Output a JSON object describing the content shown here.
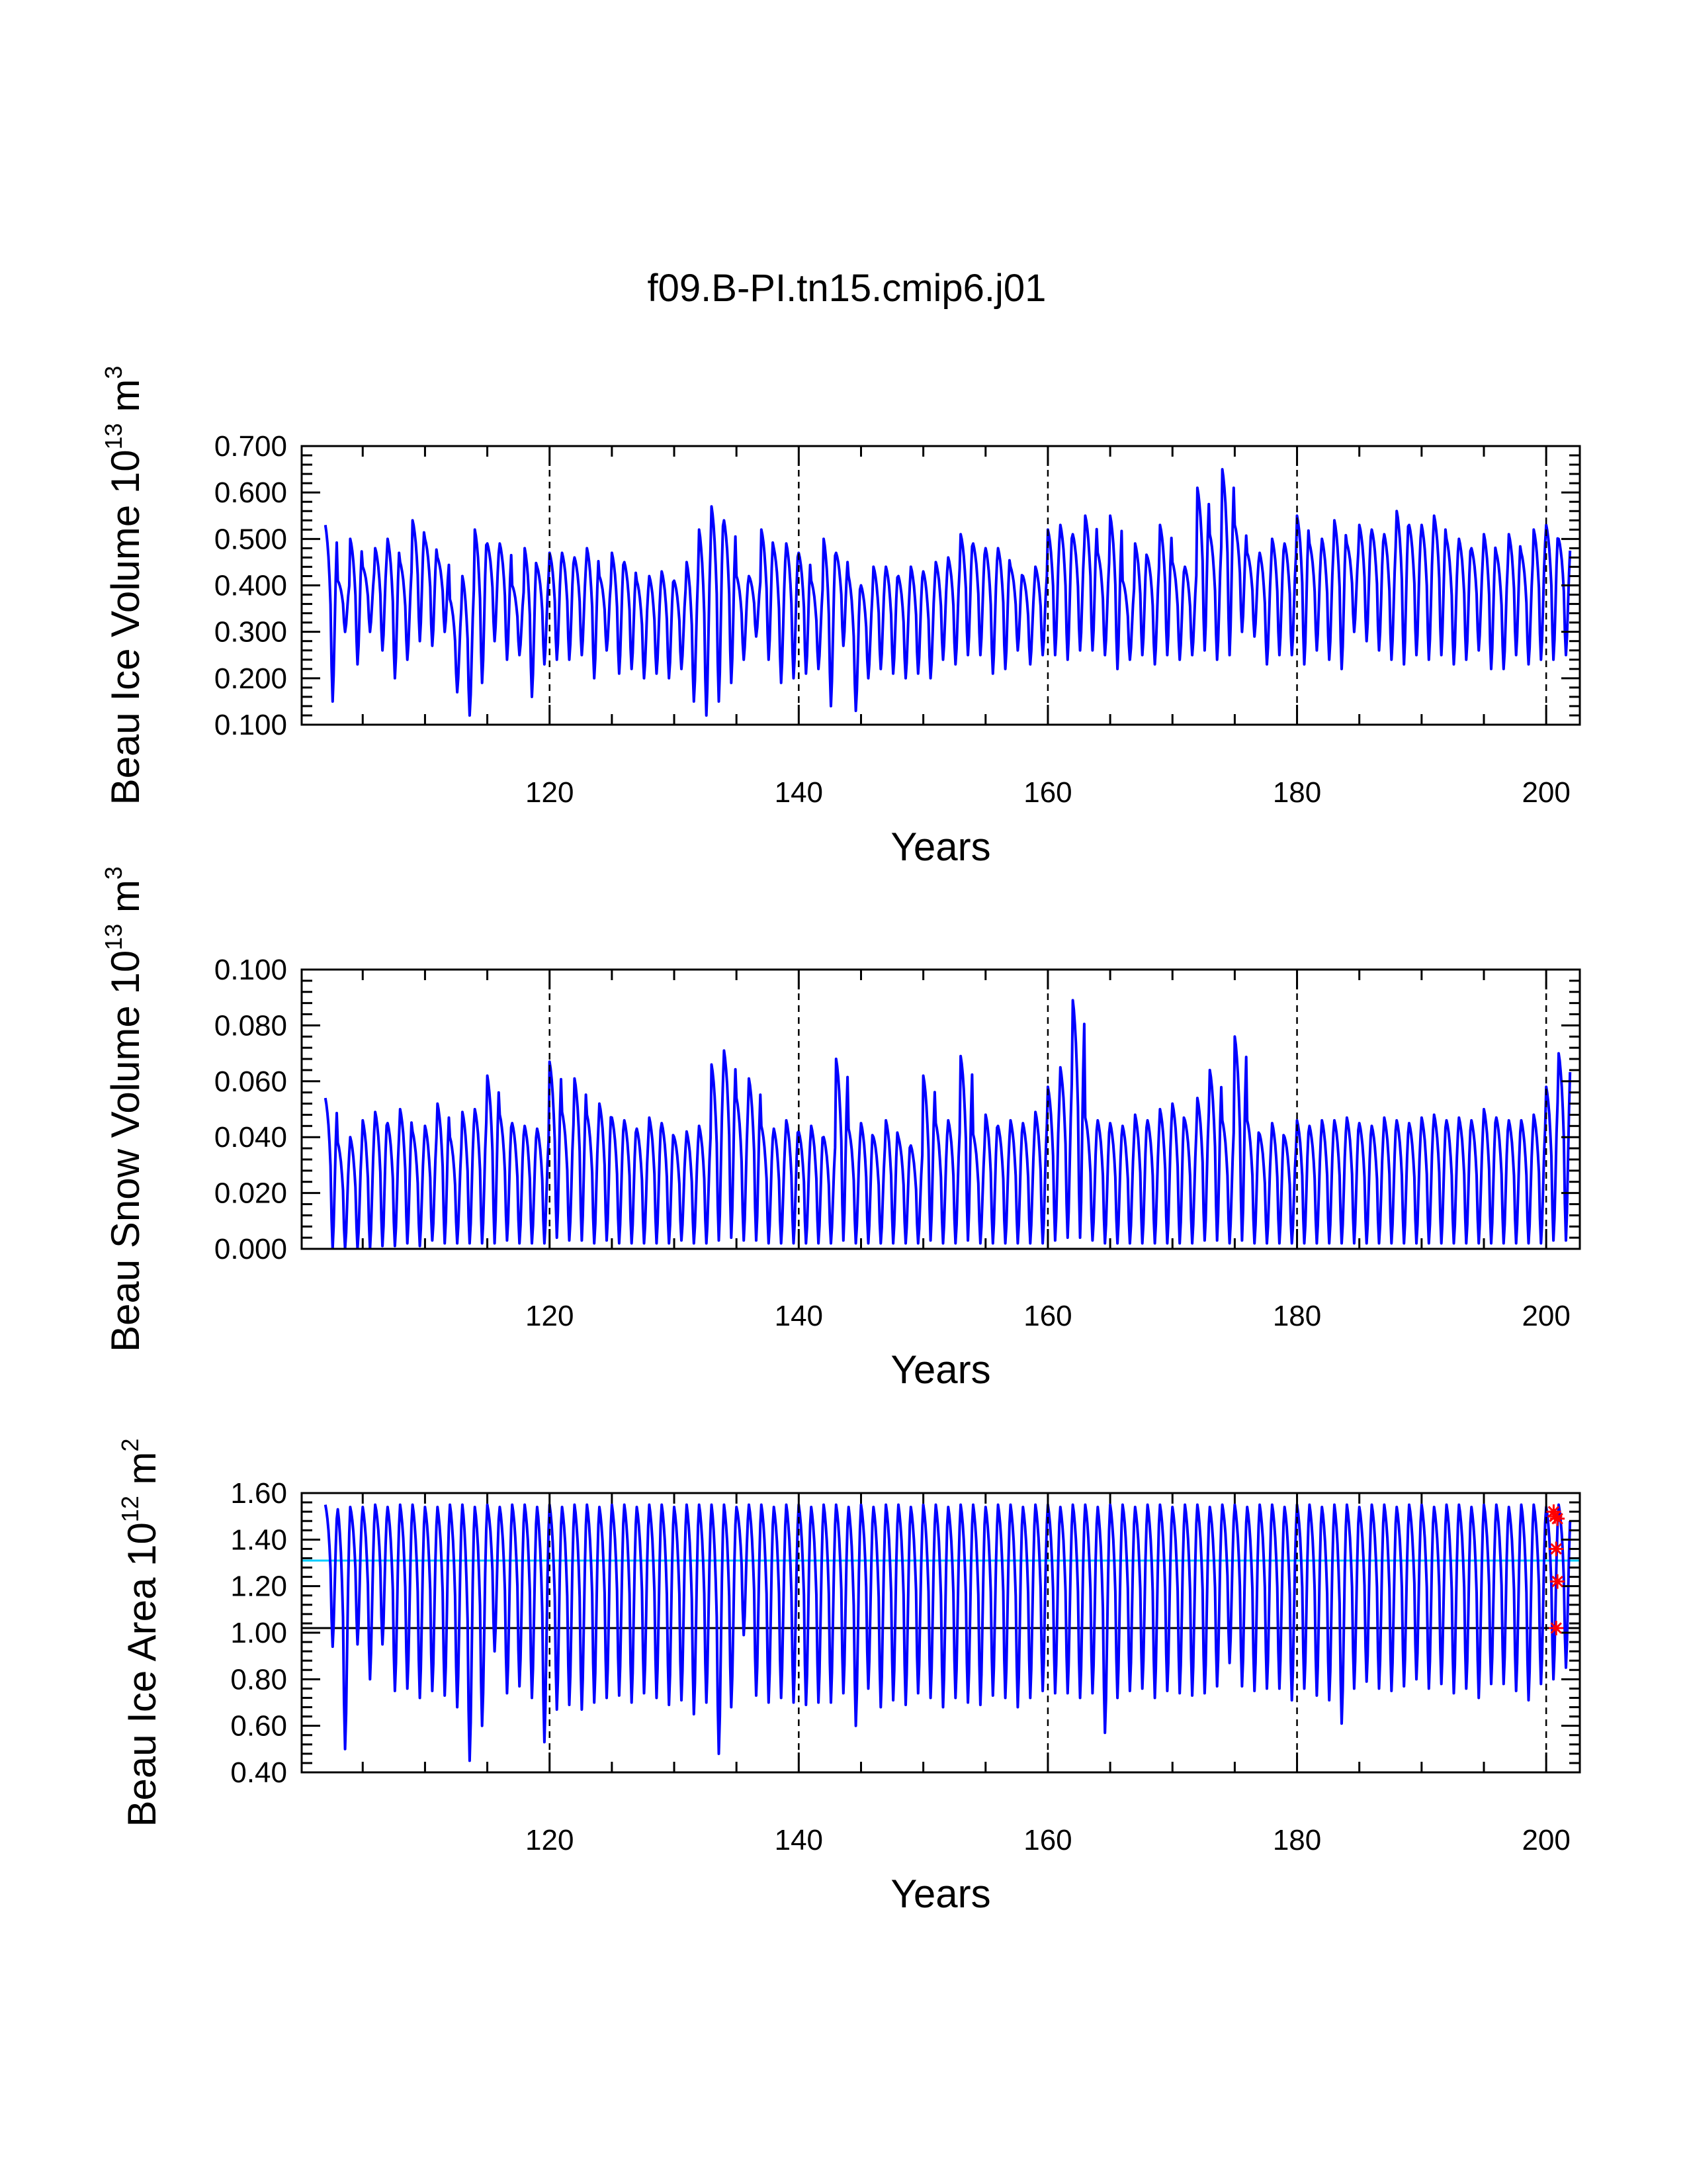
{
  "title": "f09.B-PI.tn15.cmip6.j01",
  "colors": {
    "series": "#0000ff",
    "reference_line_cyan": "#00ccff",
    "reference_line_black": "#000000",
    "markers": "#ff0000",
    "frame": "#000000"
  },
  "chart_data": [
    {
      "type": "line",
      "name": "ice-volume",
      "title": "",
      "ylabel_parts": [
        "Beau Ice Volume 10",
        "13",
        " m",
        "3"
      ],
      "xlabel": "Years",
      "xlim": [
        100.1,
        202.7
      ],
      "ylim": [
        0.1,
        0.7
      ],
      "x_ticks": [
        120,
        140,
        160,
        180,
        200
      ],
      "x_tick_labels": [
        "120",
        "140",
        "160",
        "180",
        "200"
      ],
      "y_ticks": [
        0.1,
        0.2,
        0.3,
        0.4,
        0.5,
        0.6,
        0.7
      ],
      "y_tick_labels": [
        "0.100",
        "0.200",
        "0.300",
        "0.400",
        "0.500",
        "0.600",
        "0.700"
      ],
      "vlines": [
        120,
        140,
        160,
        180,
        200
      ],
      "series": [
        {
          "name": "monthly ice volume",
          "x_start": 102.0,
          "x_step": 1,
          "annual_max": [
            0.53,
            0.41,
            0.5,
            0.44,
            0.48,
            0.5,
            0.45,
            0.54,
            0.5,
            0.46,
            0.37,
            0.42,
            0.52,
            0.49,
            0.49,
            0.4,
            0.48,
            0.44,
            0.47,
            0.47,
            0.46,
            0.48,
            0.42,
            0.47,
            0.45,
            0.41,
            0.42,
            0.43,
            0.41,
            0.45,
            0.52,
            0.57,
            0.54,
            0.42,
            0.42,
            0.52,
            0.48,
            0.49,
            0.47,
            0.41,
            0.5,
            0.47,
            0.42,
            0.4,
            0.44,
            0.44,
            0.42,
            0.44,
            0.43,
            0.45,
            0.46,
            0.51,
            0.49,
            0.48,
            0.48,
            0.44,
            0.42,
            0.44,
            0.52,
            0.53,
            0.51,
            0.55,
            0.47,
            0.55,
            0.41,
            0.49,
            0.46,
            0.53,
            0.45,
            0.44,
            0.61,
            0.51,
            0.65,
            0.53,
            0.47,
            0.47,
            0.5,
            0.49,
            0.55,
            0.49,
            0.5,
            0.54,
            0.49,
            0.53,
            0.52,
            0.51,
            0.56,
            0.53,
            0.53,
            0.55,
            0.5,
            0.5,
            0.48,
            0.51,
            0.47,
            0.51,
            0.47,
            0.52,
            0.53,
            0.5
          ],
          "annual_min": [
            0.15,
            0.3,
            0.23,
            0.3,
            0.26,
            0.2,
            0.24,
            0.28,
            0.27,
            0.3,
            0.17,
            0.12,
            0.19,
            0.28,
            0.24,
            0.25,
            0.16,
            0.23,
            0.24,
            0.24,
            0.25,
            0.2,
            0.26,
            0.21,
            0.22,
            0.2,
            0.21,
            0.2,
            0.22,
            0.15,
            0.12,
            0.15,
            0.19,
            0.24,
            0.29,
            0.24,
            0.19,
            0.2,
            0.21,
            0.22,
            0.14,
            0.27,
            0.13,
            0.2,
            0.22,
            0.21,
            0.2,
            0.21,
            0.2,
            0.24,
            0.23,
            0.25,
            0.25,
            0.21,
            0.22,
            0.26,
            0.23,
            0.25,
            0.25,
            0.24,
            0.26,
            0.26,
            0.25,
            0.22,
            0.24,
            0.25,
            0.23,
            0.25,
            0.24,
            0.25,
            0.26,
            0.24,
            0.25,
            0.3,
            0.29,
            0.23,
            0.25,
            0.25,
            0.23,
            0.26,
            0.24,
            0.22,
            0.3,
            0.28,
            0.26,
            0.24,
            0.23,
            0.25,
            0.24,
            0.25,
            0.23,
            0.24,
            0.26,
            0.22,
            0.22,
            0.25,
            0.23,
            0.24,
            0.24,
            0.25
          ]
        }
      ]
    },
    {
      "type": "line",
      "name": "snow-volume",
      "title": "",
      "ylabel_parts": [
        "Beau Snow Volume 10",
        "13",
        " m",
        "3"
      ],
      "xlabel": "Years",
      "xlim": [
        100.1,
        202.7
      ],
      "ylim": [
        0.0,
        0.1
      ],
      "x_ticks": [
        120,
        140,
        160,
        180,
        200
      ],
      "x_tick_labels": [
        "120",
        "140",
        "160",
        "180",
        "200"
      ],
      "y_ticks": [
        0.0,
        0.02,
        0.04,
        0.06,
        0.08,
        0.1
      ],
      "y_tick_labels": [
        "0.000",
        "0.020",
        "0.040",
        "0.060",
        "0.080",
        "0.100"
      ],
      "vlines": [
        120,
        140,
        160,
        180,
        200
      ],
      "series": [
        {
          "name": "monthly snow volume",
          "x_start": 102.0,
          "x_step": 1,
          "annual_max": [
            0.054,
            0.038,
            0.04,
            0.046,
            0.049,
            0.045,
            0.05,
            0.042,
            0.044,
            0.052,
            0.04,
            0.049,
            0.05,
            0.062,
            0.048,
            0.045,
            0.044,
            0.043,
            0.067,
            0.049,
            0.061,
            0.048,
            0.052,
            0.047,
            0.046,
            0.043,
            0.047,
            0.045,
            0.04,
            0.042,
            0.044,
            0.066,
            0.071,
            0.054,
            0.061,
            0.044,
            0.043,
            0.046,
            0.042,
            0.044,
            0.04,
            0.068,
            0.043,
            0.045,
            0.04,
            0.046,
            0.04,
            0.037,
            0.062,
            0.045,
            0.046,
            0.069,
            0.041,
            0.048,
            0.044,
            0.046,
            0.045,
            0.049,
            0.058,
            0.065,
            0.089,
            0.047,
            0.046,
            0.045,
            0.044,
            0.048,
            0.046,
            0.05,
            0.052,
            0.046,
            0.054,
            0.064,
            0.046,
            0.076,
            0.046,
            0.041,
            0.045,
            0.04,
            0.046,
            0.044,
            0.046,
            0.046,
            0.047,
            0.045,
            0.044,
            0.047,
            0.046,
            0.045,
            0.047,
            0.048,
            0.046,
            0.047,
            0.046,
            0.05,
            0.047,
            0.046,
            0.046,
            0.048,
            0.058,
            0.07
          ],
          "annual_min": [
            0.0,
            0.0,
            0.0,
            0.0,
            0.001,
            0.001,
            0.002,
            0.001,
            0.003,
            0.002,
            0.002,
            0.002,
            0.002,
            0.002,
            0.003,
            0.002,
            0.002,
            0.002,
            0.004,
            0.003,
            0.003,
            0.002,
            0.003,
            0.002,
            0.002,
            0.002,
            0.002,
            0.002,
            0.003,
            0.002,
            0.002,
            0.003,
            0.004,
            0.003,
            0.003,
            0.002,
            0.002,
            0.002,
            0.002,
            0.002,
            0.002,
            0.003,
            0.002,
            0.002,
            0.002,
            0.002,
            0.002,
            0.002,
            0.003,
            0.002,
            0.002,
            0.003,
            0.002,
            0.002,
            0.002,
            0.002,
            0.002,
            0.002,
            0.003,
            0.004,
            0.004,
            0.003,
            0.002,
            0.002,
            0.002,
            0.002,
            0.002,
            0.002,
            0.002,
            0.002,
            0.003,
            0.003,
            0.002,
            0.003,
            0.002,
            0.002,
            0.002,
            0.002,
            0.002,
            0.002,
            0.002,
            0.002,
            0.002,
            0.002,
            0.002,
            0.002,
            0.002,
            0.002,
            0.002,
            0.002,
            0.002,
            0.002,
            0.002,
            0.002,
            0.002,
            0.002,
            0.002,
            0.002,
            0.003,
            0.003
          ]
        }
      ]
    },
    {
      "type": "line",
      "name": "ice-area",
      "title": "",
      "ylabel_parts": [
        "Beau Ice Area 10",
        "12",
        " m",
        "2"
      ],
      "xlabel": "Years",
      "xlim": [
        100.1,
        202.7
      ],
      "ylim": [
        0.4,
        1.6
      ],
      "x_ticks": [
        120,
        140,
        160,
        180,
        200
      ],
      "x_tick_labels": [
        "120",
        "140",
        "160",
        "180",
        "200"
      ],
      "y_ticks": [
        0.4,
        0.6,
        0.8,
        1.0,
        1.2,
        1.4,
        1.6
      ],
      "y_tick_labels": [
        "0.40",
        "0.60",
        "0.80",
        "1.00",
        "1.20",
        "1.40",
        "1.60"
      ],
      "vlines": [
        120,
        140,
        160,
        180,
        200
      ],
      "hlines": [
        {
          "y": 1.31,
          "color": "cyan"
        },
        {
          "y": 1.02,
          "color": "black"
        }
      ],
      "markers": [
        {
          "x": 200.6,
          "y": 1.52
        },
        {
          "x": 200.7,
          "y": 1.5
        },
        {
          "x": 200.9,
          "y": 1.49
        },
        {
          "x": 200.8,
          "y": 1.36
        },
        {
          "x": 200.9,
          "y": 1.22
        },
        {
          "x": 200.8,
          "y": 1.02
        }
      ],
      "series": [
        {
          "name": "monthly ice area",
          "x_start": 102.0,
          "x_step": 1,
          "annual_max": [
            1.55,
            1.53,
            1.54,
            1.54,
            1.55,
            1.54,
            1.55,
            1.55,
            1.54,
            1.54,
            1.55,
            1.55,
            1.54,
            1.55,
            1.54,
            1.55,
            1.55,
            1.54,
            1.55,
            1.54,
            1.55,
            1.55,
            1.54,
            1.55,
            1.55,
            1.54,
            1.55,
            1.55,
            1.54,
            1.55,
            1.55,
            1.55,
            1.55,
            1.54,
            1.55,
            1.55,
            1.54,
            1.55,
            1.55,
            1.54,
            1.55,
            1.55,
            1.54,
            1.55,
            1.54,
            1.55,
            1.55,
            1.54,
            1.55,
            1.55,
            1.54,
            1.55,
            1.55,
            1.54,
            1.55,
            1.55,
            1.54,
            1.55,
            1.55,
            1.54,
            1.55,
            1.55,
            1.54,
            1.55,
            1.55,
            1.54,
            1.55,
            1.55,
            1.54,
            1.55,
            1.55,
            1.54,
            1.55,
            1.55,
            1.54,
            1.55,
            1.55,
            1.54,
            1.55,
            1.55,
            1.54,
            1.55,
            1.55,
            1.54,
            1.55,
            1.55,
            1.54,
            1.55,
            1.55,
            1.54,
            1.55,
            1.55,
            1.54,
            1.55,
            1.55,
            1.54,
            1.55,
            1.55,
            1.54,
            1.55
          ],
          "annual_min": [
            0.94,
            0.5,
            0.95,
            0.8,
            0.95,
            0.75,
            0.76,
            0.72,
            0.75,
            0.73,
            0.68,
            0.45,
            0.6,
            0.92,
            0.74,
            0.77,
            0.72,
            0.53,
            0.67,
            0.69,
            0.67,
            0.7,
            0.72,
            0.73,
            0.7,
            0.74,
            0.72,
            0.69,
            0.71,
            0.65,
            0.7,
            0.48,
            0.68,
            0.99,
            0.73,
            0.7,
            0.72,
            0.7,
            0.69,
            0.7,
            0.7,
            0.74,
            0.6,
            0.76,
            0.68,
            0.71,
            0.69,
            0.74,
            0.72,
            0.68,
            0.72,
            0.7,
            0.69,
            0.73,
            0.72,
            0.68,
            0.72,
            0.75,
            0.74,
            0.74,
            0.72,
            0.74,
            0.57,
            0.72,
            0.75,
            0.76,
            0.72,
            0.75,
            0.74,
            0.73,
            0.74,
            0.77,
            0.87,
            0.77,
            0.75,
            0.76,
            0.76,
            0.71,
            0.76,
            0.73,
            0.71,
            0.61,
            0.76,
            0.79,
            0.76,
            0.75,
            0.77,
            0.8,
            0.76,
            0.78,
            0.74,
            0.76,
            0.72,
            0.78,
            0.78,
            0.75,
            0.71,
            0.78,
            0.8,
            0.85
          ]
        }
      ]
    }
  ]
}
